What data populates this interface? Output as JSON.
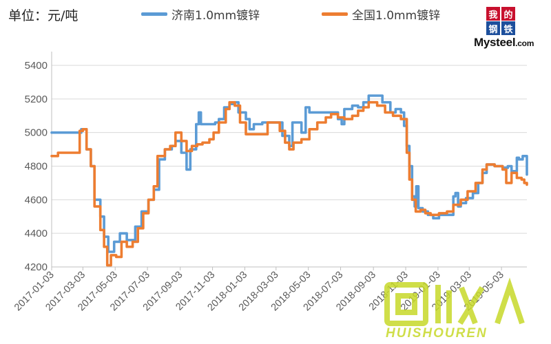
{
  "unit_label": "单位：元/吨",
  "logo": {
    "chars": [
      "我",
      "的",
      "钢",
      "铁"
    ],
    "text_main": "Mysteel",
    "text_suffix": ".com",
    "colors": [
      "#c8102e",
      "#c8102e",
      "#1d4f9c",
      "#1d4f9c"
    ]
  },
  "watermark": {
    "glyphs": "回收",
    "text": "HUISHOUREN",
    "color": "#c7d92a"
  },
  "chart_data": {
    "type": "line",
    "title": "",
    "xlabel": "",
    "ylabel": "",
    "ylim": [
      4200,
      5400
    ],
    "yticks": [
      4200,
      4400,
      4600,
      4800,
      5000,
      5200,
      5400
    ],
    "x_ticks": [
      "2017-01-03",
      "2017-03-03",
      "2017-05-03",
      "2017-07-03",
      "2017-09-03",
      "2017-11-03",
      "2018-01-03",
      "2018-03-03",
      "2018-05-03",
      "2018-07-03",
      "2018-09-03",
      "2018-11-03",
      "2019-01-03",
      "2019-03-03",
      "2019-05-03"
    ],
    "x_start": "2017-01-03",
    "x_end": "2019-06-20",
    "grid": {
      "x": false,
      "y": true
    },
    "legend_position": "top",
    "series": [
      {
        "name": "济南1.0mm镀锌",
        "color": "#5b9bd5",
        "points": [
          [
            "2017-01-03",
            5000
          ],
          [
            "2017-02-20",
            5000
          ],
          [
            "2017-02-28",
            5020
          ],
          [
            "2017-03-10",
            4900
          ],
          [
            "2017-03-18",
            4800
          ],
          [
            "2017-03-25",
            4600
          ],
          [
            "2017-04-05",
            4500
          ],
          [
            "2017-04-12",
            4380
          ],
          [
            "2017-04-20",
            4290
          ],
          [
            "2017-05-01",
            4350
          ],
          [
            "2017-05-12",
            4400
          ],
          [
            "2017-05-25",
            4360
          ],
          [
            "2017-06-05",
            4360
          ],
          [
            "2017-06-10",
            4440
          ],
          [
            "2017-06-22",
            4530
          ],
          [
            "2017-07-05",
            4600
          ],
          [
            "2017-07-15",
            4660
          ],
          [
            "2017-07-25",
            4840
          ],
          [
            "2017-08-05",
            4900
          ],
          [
            "2017-08-18",
            4920
          ],
          [
            "2017-08-25",
            4950
          ],
          [
            "2017-09-05",
            4880
          ],
          [
            "2017-09-15",
            4780
          ],
          [
            "2017-09-22",
            4900
          ],
          [
            "2017-10-03",
            5050
          ],
          [
            "2017-10-08",
            5120
          ],
          [
            "2017-10-12",
            5050
          ],
          [
            "2017-10-25",
            5050
          ],
          [
            "2017-11-08",
            5060
          ],
          [
            "2017-11-15",
            5080
          ],
          [
            "2017-11-25",
            5150
          ],
          [
            "2017-12-05",
            5170
          ],
          [
            "2017-12-15",
            5180
          ],
          [
            "2017-12-22",
            5120
          ],
          [
            "2018-01-05",
            5080
          ],
          [
            "2018-01-12",
            5020
          ],
          [
            "2018-01-20",
            5050
          ],
          [
            "2018-02-05",
            5060
          ],
          [
            "2018-03-05",
            5060
          ],
          [
            "2018-03-15",
            4980
          ],
          [
            "2018-03-28",
            4920
          ],
          [
            "2018-04-03",
            5060
          ],
          [
            "2018-04-12",
            5060
          ],
          [
            "2018-04-20",
            5000
          ],
          [
            "2018-04-28",
            5150
          ],
          [
            "2018-05-05",
            5120
          ],
          [
            "2018-05-20",
            5120
          ],
          [
            "2018-06-05",
            5120
          ],
          [
            "2018-06-15",
            5120
          ],
          [
            "2018-06-28",
            5080
          ],
          [
            "2018-07-05",
            5050
          ],
          [
            "2018-07-10",
            5140
          ],
          [
            "2018-07-25",
            5160
          ],
          [
            "2018-08-05",
            5150
          ],
          [
            "2018-08-15",
            5180
          ],
          [
            "2018-08-25",
            5220
          ],
          [
            "2018-09-10",
            5220
          ],
          [
            "2018-09-20",
            5180
          ],
          [
            "2018-10-05",
            5120
          ],
          [
            "2018-10-15",
            5140
          ],
          [
            "2018-10-25",
            5120
          ],
          [
            "2018-10-31",
            5040
          ],
          [
            "2018-11-05",
            4920
          ],
          [
            "2018-11-10",
            4800
          ],
          [
            "2018-11-15",
            4620
          ],
          [
            "2018-11-20",
            4560
          ],
          [
            "2018-11-23",
            4680
          ],
          [
            "2018-11-27",
            4550
          ],
          [
            "2018-12-05",
            4530
          ],
          [
            "2018-12-15",
            4510
          ],
          [
            "2018-12-25",
            4490
          ],
          [
            "2019-01-05",
            4510
          ],
          [
            "2019-01-20",
            4510
          ],
          [
            "2019-01-28",
            4510
          ],
          [
            "2019-02-01",
            4620
          ],
          [
            "2019-02-05",
            4640
          ],
          [
            "2019-02-10",
            4560
          ],
          [
            "2019-02-15",
            4580
          ],
          [
            "2019-02-25",
            4610
          ],
          [
            "2019-03-10",
            4640
          ],
          [
            "2019-03-20",
            4700
          ],
          [
            "2019-03-28",
            4760
          ],
          [
            "2019-04-05",
            4810
          ],
          [
            "2019-04-20",
            4800
          ],
          [
            "2019-05-05",
            4790
          ],
          [
            "2019-05-15",
            4800
          ],
          [
            "2019-05-22",
            4770
          ],
          [
            "2019-06-01",
            4850
          ],
          [
            "2019-06-05",
            4840
          ],
          [
            "2019-06-12",
            4860
          ],
          [
            "2019-06-18",
            4860
          ],
          [
            "2019-06-20",
            4750
          ]
        ]
      },
      {
        "name": "全国1.0mm镀锌",
        "color": "#ed7d31",
        "points": [
          [
            "2017-01-03",
            4860
          ],
          [
            "2017-01-15",
            4880
          ],
          [
            "2017-02-05",
            4880
          ],
          [
            "2017-02-18",
            4880
          ],
          [
            "2017-02-25",
            5010
          ],
          [
            "2017-03-03",
            5020
          ],
          [
            "2017-03-10",
            4900
          ],
          [
            "2017-03-18",
            4800
          ],
          [
            "2017-03-25",
            4560
          ],
          [
            "2017-04-05",
            4420
          ],
          [
            "2017-04-12",
            4320
          ],
          [
            "2017-04-18",
            4210
          ],
          [
            "2017-04-25",
            4270
          ],
          [
            "2017-05-05",
            4260
          ],
          [
            "2017-05-15",
            4350
          ],
          [
            "2017-05-25",
            4320
          ],
          [
            "2017-06-05",
            4350
          ],
          [
            "2017-06-15",
            4430
          ],
          [
            "2017-06-25",
            4520
          ],
          [
            "2017-07-05",
            4600
          ],
          [
            "2017-07-15",
            4680
          ],
          [
            "2017-07-22",
            4860
          ],
          [
            "2017-08-05",
            4900
          ],
          [
            "2017-08-15",
            4920
          ],
          [
            "2017-08-25",
            5000
          ],
          [
            "2017-09-05",
            4950
          ],
          [
            "2017-09-15",
            4890
          ],
          [
            "2017-09-25",
            4920
          ],
          [
            "2017-10-05",
            4930
          ],
          [
            "2017-10-15",
            4940
          ],
          [
            "2017-10-28",
            4960
          ],
          [
            "2017-11-05",
            5000
          ],
          [
            "2017-11-15",
            5060
          ],
          [
            "2017-11-28",
            5140
          ],
          [
            "2017-12-05",
            5180
          ],
          [
            "2017-12-15",
            5160
          ],
          [
            "2017-12-25",
            5060
          ],
          [
            "2018-01-05",
            4990
          ],
          [
            "2018-01-20",
            4990
          ],
          [
            "2018-02-05",
            4990
          ],
          [
            "2018-02-15",
            5060
          ],
          [
            "2018-02-28",
            5060
          ],
          [
            "2018-03-10",
            5010
          ],
          [
            "2018-03-20",
            4940
          ],
          [
            "2018-03-28",
            4900
          ],
          [
            "2018-04-05",
            4940
          ],
          [
            "2018-04-20",
            4960
          ],
          [
            "2018-05-05",
            5020
          ],
          [
            "2018-05-20",
            5060
          ],
          [
            "2018-06-05",
            5090
          ],
          [
            "2018-06-15",
            5110
          ],
          [
            "2018-06-28",
            5090
          ],
          [
            "2018-07-10",
            5080
          ],
          [
            "2018-07-25",
            5100
          ],
          [
            "2018-08-05",
            5130
          ],
          [
            "2018-08-15",
            5150
          ],
          [
            "2018-08-25",
            5180
          ],
          [
            "2018-09-10",
            5160
          ],
          [
            "2018-09-25",
            5120
          ],
          [
            "2018-10-10",
            5100
          ],
          [
            "2018-10-25",
            5080
          ],
          [
            "2018-11-05",
            4880
          ],
          [
            "2018-11-10",
            4720
          ],
          [
            "2018-11-15",
            4600
          ],
          [
            "2018-11-22",
            4530
          ],
          [
            "2018-12-01",
            4540
          ],
          [
            "2018-12-10",
            4520
          ],
          [
            "2018-12-20",
            4510
          ],
          [
            "2019-01-05",
            4520
          ],
          [
            "2019-01-20",
            4530
          ],
          [
            "2019-02-01",
            4570
          ],
          [
            "2019-02-15",
            4600
          ],
          [
            "2019-02-28",
            4650
          ],
          [
            "2019-03-15",
            4700
          ],
          [
            "2019-03-28",
            4780
          ],
          [
            "2019-04-05",
            4810
          ],
          [
            "2019-04-20",
            4800
          ],
          [
            "2019-05-05",
            4780
          ],
          [
            "2019-05-12",
            4700
          ],
          [
            "2019-05-22",
            4760
          ],
          [
            "2019-06-01",
            4730
          ],
          [
            "2019-06-10",
            4720
          ],
          [
            "2019-06-15",
            4700
          ],
          [
            "2019-06-20",
            4690
          ]
        ]
      }
    ]
  }
}
